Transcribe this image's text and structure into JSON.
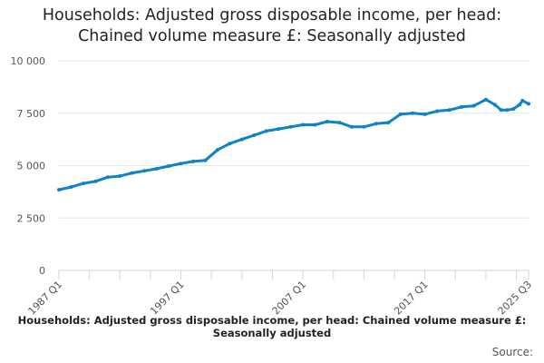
{
  "chart_data": {
    "type": "line",
    "title_line1": "Households: Adjusted gross disposable income, per head:",
    "title_line2": "Chained volume measure £: Seasonally adjusted",
    "xlabel": "",
    "ylabel": "",
    "ylim": [
      0,
      10000
    ],
    "yticks": [
      {
        "v": 0,
        "label": "0"
      },
      {
        "v": 2500,
        "label": "2 500"
      },
      {
        "v": 5000,
        "label": "5 000"
      },
      {
        "v": 7500,
        "label": "7 500"
      },
      {
        "v": 10000,
        "label": "10 000"
      }
    ],
    "xrange_quarters": [
      0,
      154
    ],
    "xtick_labels": [
      {
        "q": 0,
        "label": "1987 Q1"
      },
      {
        "q": 40,
        "label": "1997 Q1"
      },
      {
        "q": 80,
        "label": "2007 Q1"
      },
      {
        "q": 120,
        "label": "2017 Q1"
      },
      {
        "q": 154,
        "label": "2025 Q3"
      }
    ],
    "series": [
      {
        "name": "Households: Adjusted gross disposable income, per head: Chained volume measure £: Seasonally adjusted",
        "color": "#0f82c8",
        "points": [
          [
            0,
            3850
          ],
          [
            4,
            3980
          ],
          [
            8,
            4150
          ],
          [
            12,
            4250
          ],
          [
            16,
            4450
          ],
          [
            20,
            4500
          ],
          [
            24,
            4650
          ],
          [
            28,
            4750
          ],
          [
            32,
            4850
          ],
          [
            36,
            4980
          ],
          [
            40,
            5100
          ],
          [
            44,
            5200
          ],
          [
            48,
            5250
          ],
          [
            52,
            5750
          ],
          [
            56,
            6050
          ],
          [
            60,
            6250
          ],
          [
            64,
            6450
          ],
          [
            68,
            6650
          ],
          [
            72,
            6750
          ],
          [
            76,
            6850
          ],
          [
            80,
            6950
          ],
          [
            84,
            6950
          ],
          [
            88,
            7100
          ],
          [
            92,
            7050
          ],
          [
            96,
            6850
          ],
          [
            100,
            6850
          ],
          [
            104,
            7000
          ],
          [
            108,
            7050
          ],
          [
            112,
            7450
          ],
          [
            116,
            7500
          ],
          [
            120,
            7450
          ],
          [
            124,
            7600
          ],
          [
            128,
            7650
          ],
          [
            132,
            7800
          ],
          [
            136,
            7850
          ],
          [
            140,
            8150
          ],
          [
            143,
            7900
          ],
          [
            145,
            7650
          ],
          [
            147,
            7650
          ],
          [
            149,
            7700
          ],
          [
            151,
            7900
          ],
          [
            152,
            8100
          ],
          [
            154,
            7950
          ]
        ]
      }
    ]
  },
  "footer": "Households: Adjusted gross disposable income, per head: Chained volume measure £: Seasonally adjusted",
  "source_label": "Source:"
}
